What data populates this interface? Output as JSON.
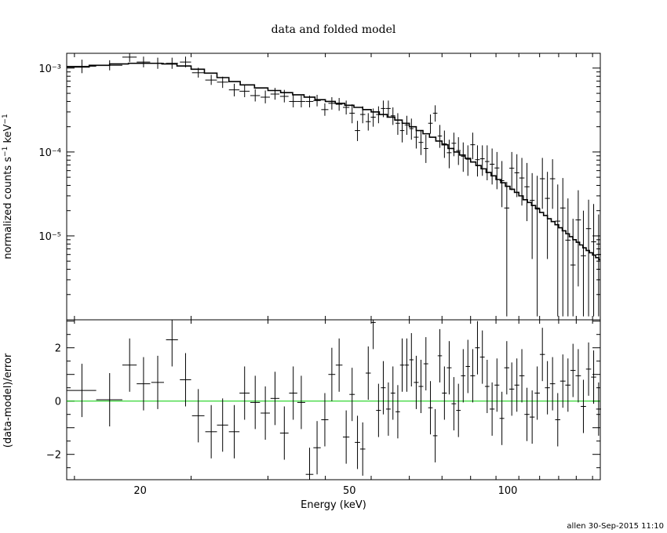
{
  "chart_data": [
    {
      "type": "scatter",
      "title": "data and folded model",
      "xlabel": "",
      "ylabel": "normalized counts s⁻¹ keV⁻¹",
      "x_scale": "log",
      "y_scale": "log",
      "xlim": [
        14.5,
        150
      ],
      "ylim": [
        1e-06,
        0.0015
      ],
      "y_ticks": [
        {
          "value": 0.001,
          "label": "10⁻³"
        },
        {
          "value": 0.0001,
          "label": "10⁻⁴"
        },
        {
          "value": 1e-05,
          "label": "10⁻⁵"
        }
      ],
      "series": [
        {
          "kind": "data",
          "x": [
            15.5,
            17.5,
            19.1,
            20.3,
            21.6,
            23.0,
            24.4,
            25.8,
            27.3,
            28.7,
            30.2,
            31.6,
            33.1,
            34.6,
            36.1,
            37.6,
            39.1,
            40.5,
            42.0,
            43.4,
            44.9,
            46.3,
            47.8,
            49.3,
            50.6,
            51.8,
            53.0,
            54.3,
            55.5,
            56.8,
            58.0,
            59.3,
            60.5,
            61.8,
            63.0,
            64.3,
            65.6,
            67.0,
            68.4,
            69.9,
            71.3,
            72.8,
            74.3,
            75.8,
            77.4,
            79.0,
            80.6,
            82.3,
            84.0,
            85.8,
            87.6,
            89.5,
            91.4,
            93.4,
            95.4,
            97.5,
            99.6,
            101.8,
            104.1,
            106.4,
            108.8,
            111.3,
            113.8,
            116.4,
            119.0,
            121.7,
            124.5,
            127.3,
            130.2,
            133.1,
            136.2,
            139.3,
            142.5,
            145.7,
            148.9
          ],
          "x_err": [
            1.0,
            1.0,
            0.6,
            0.6,
            0.6,
            0.6,
            0.6,
            0.7,
            0.7,
            0.7,
            0.7,
            0.7,
            0.7,
            0.7,
            0.7,
            0.7,
            0.7,
            0.7,
            0.7,
            0.7,
            0.7,
            0.7,
            0.7,
            0.7,
            0.6,
            0.6,
            0.6,
            0.6,
            0.6,
            0.6,
            0.6,
            0.6,
            0.6,
            0.6,
            0.6,
            0.6,
            0.6,
            0.7,
            0.7,
            0.7,
            0.7,
            0.7,
            0.7,
            0.8,
            0.8,
            0.8,
            0.8,
            0.8,
            0.8,
            0.9,
            0.9,
            0.9,
            0.9,
            1.0,
            1.0,
            1.0,
            1.1,
            1.1,
            1.1,
            1.2,
            1.2,
            1.2,
            1.3,
            1.3,
            1.3,
            1.4,
            1.4,
            1.5,
            1.5,
            1.5,
            1.6,
            1.6,
            1.6,
            1.6,
            1.6
          ],
          "y": [
            0.00105,
            0.00108,
            0.00135,
            0.00118,
            0.00114,
            0.00114,
            0.00118,
            0.00088,
            0.00072,
            0.00068,
            0.00055,
            0.00053,
            0.00047,
            0.00045,
            0.00049,
            0.00046,
            0.0004,
            0.0004,
            0.0004,
            0.00041,
            0.00032,
            0.00038,
            0.00037,
            0.00034,
            0.00029,
            0.00018,
            0.00028,
            0.00023,
            0.00026,
            0.00028,
            0.00033,
            0.00033,
            0.00027,
            0.00022,
            0.00018,
            0.00021,
            0.00019,
            0.00015,
            0.00013,
            0.00011,
            0.00022,
            0.00029,
            0.000155,
            0.000125,
            9.8e-05,
            0.000127,
            0.000104,
            8.9e-05,
            8.2e-05,
            0.000122,
            8.1e-05,
            8.3e-05,
            7.7e-05,
            7.15e-05,
            6.45e-05,
            4.55e-05,
            2.15e-05,
            6.4e-05,
            5.65e-05,
            4.9e-05,
            3.85e-05,
            2.65e-05,
            2.15e-05,
            4.8e-05,
            2.8e-05,
            4.8e-05,
            1.5e-05,
            2.15e-05,
            8.9e-06,
            4.5e-06,
            1.55e-05,
            5.8e-06,
            1.22e-05,
            8.5e-06,
            6e-06
          ],
          "y_lo": [
            0.00087,
            0.00094,
            0.00118,
            0.00102,
            0.00098,
            0.00098,
            0.00102,
            0.00077,
            0.00063,
            0.00058,
            0.00046,
            0.00045,
            0.0004,
            0.00038,
            0.00042,
            0.00039,
            0.00034,
            0.00034,
            0.00034,
            0.00035,
            0.00027,
            0.00032,
            0.00031,
            0.00028,
            0.00022,
            0.000135,
            0.00022,
            0.00018,
            0.0002,
            0.00022,
            0.00026,
            0.00026,
            0.00021,
            0.00016,
            0.00013,
            0.00016,
            0.00014,
            0.00011,
            9.2e-05,
            7.4e-05,
            0.000165,
            0.00023,
            0.000112,
            8.5e-05,
            6.4e-05,
            8.9e-05,
            7e-05,
            5.8e-05,
            5.2e-05,
            8.2e-05,
            5.1e-05,
            5.2e-05,
            4.6e-05,
            4.1e-05,
            3.6e-05,
            2.2e-05,
            1.1e-06,
            3.5e-05,
            2.9e-05,
            2.3e-05,
            1.5e-05,
            5.3e-06,
            1.1e-06,
            2.1e-05,
            5.3e-06,
            2.1e-05,
            1.1e-06,
            1.1e-06,
            1.1e-06,
            1.1e-06,
            2.5e-06,
            1.1e-06,
            1.1e-06,
            1.1e-06,
            1.1e-06
          ],
          "y_hi": [
            0.00126,
            0.00124,
            0.00155,
            0.00137,
            0.00133,
            0.00133,
            0.00137,
            0.00101,
            0.00083,
            0.00079,
            0.00065,
            0.00063,
            0.00056,
            0.00054,
            0.00058,
            0.00055,
            0.00048,
            0.00047,
            0.00047,
            0.00048,
            0.00038,
            0.00045,
            0.00044,
            0.00041,
            0.00037,
            0.000235,
            0.00035,
            0.00029,
            0.00033,
            0.00035,
            0.00041,
            0.00041,
            0.00034,
            0.00029,
            0.00024,
            0.00027,
            0.00025,
            0.0002,
            0.00018,
            0.00016,
            0.00028,
            0.00036,
            0.00021,
            0.00018,
            0.00014,
            0.00017,
            0.00015,
            0.00013,
            0.00012,
            0.00017,
            0.00012,
            0.00012,
            0.00012,
            0.00011,
            0.0001,
            7.8e-05,
            4.4e-05,
            0.0001,
            9.4e-05,
            8.5e-05,
            7.4e-05,
            5.6e-05,
            5.2e-05,
            8.5e-05,
            5.8e-05,
            8.2e-05,
            4.1e-05,
            4.9e-05,
            2.8e-05,
            1.6e-05,
            3.5e-05,
            2e-05,
            2.7e-05,
            2.4e-05,
            1.8e-05
          ]
        },
        {
          "kind": "model",
          "x": [
            14.5,
            16.0,
            17.5,
            19.0,
            20.5,
            22.0,
            23.5,
            25.0,
            26.5,
            28.0,
            29.5,
            31.0,
            33.0,
            35.0,
            37.0,
            39.0,
            41.0,
            43.0,
            45.0,
            47.0,
            49.0,
            51.0,
            53.0,
            55.0,
            57.0,
            59.0,
            61.0,
            63.0,
            65.0,
            67.0,
            69.0,
            71.0,
            73.0,
            75.0,
            77.0,
            79.0,
            81.0,
            83.0,
            85.0,
            87.0,
            89.0,
            91.0,
            93.0,
            95.0,
            97.0,
            99.0,
            101.0,
            103.0,
            105.0,
            107.0,
            109.0,
            111.0,
            113.0,
            115.0,
            117.0,
            119.0,
            121.0,
            123.0,
            125.0,
            127.0,
            129.0,
            131.0,
            133.0,
            135.0,
            137.0,
            139.0,
            141.0,
            143.0,
            145.0,
            147.0,
            149.0,
            150.0
          ],
          "y": [
            0.00103,
            0.00108,
            0.00112,
            0.00114,
            0.00114,
            0.00112,
            0.00106,
            0.00097,
            0.00087,
            0.00077,
            0.00069,
            0.00063,
            0.00058,
            0.00054,
            0.00051,
            0.00048,
            0.00045,
            0.00042,
            0.0004,
            0.00038,
            0.00036,
            0.00034,
            0.00032,
            0.0003,
            0.00028,
            0.00026,
            0.00024,
            0.00022,
            0.0002,
            0.00018,
            0.000165,
            0.00015,
            0.000135,
            0.000122,
            0.00011,
            0.0001,
            9.2e-05,
            8.4e-05,
            7.6e-05,
            6.9e-05,
            6.3e-05,
            5.7e-05,
            5.2e-05,
            4.7e-05,
            4.3e-05,
            3.9e-05,
            3.6e-05,
            3.3e-05,
            3e-05,
            2.7e-05,
            2.5e-05,
            2.3e-05,
            2.1e-05,
            1.9e-05,
            1.75e-05,
            1.6e-05,
            1.48e-05,
            1.36e-05,
            1.25e-05,
            1.15e-05,
            1.06e-05,
            9.8e-06,
            9e-06,
            8.4e-06,
            7.8e-06,
            7.2e-06,
            6.7e-06,
            6.3e-06,
            5.9e-06,
            5.5e-06,
            5.2e-06,
            5.2e-06
          ]
        }
      ]
    },
    {
      "type": "scatter",
      "xlabel": "Energy (keV)",
      "ylabel": "(data-model)/error",
      "x_scale": "log",
      "xlim": [
        14.5,
        150
      ],
      "ylim": [
        -2.95,
        3.05
      ],
      "x_ticks": [
        {
          "value": 20,
          "label": "20"
        },
        {
          "value": 50,
          "label": "50"
        },
        {
          "value": 100,
          "label": "100"
        }
      ],
      "y_ticks": [
        {
          "value": 2,
          "label": "2"
        },
        {
          "value": 0,
          "label": "0"
        },
        {
          "value": -2,
          "label": "−2"
        }
      ],
      "reference_line": {
        "y": 0,
        "color": "#00cc00"
      },
      "series": [
        {
          "kind": "residuals",
          "x": [
            15.5,
            17.5,
            19.1,
            20.3,
            21.6,
            23.0,
            24.4,
            25.8,
            27.3,
            28.7,
            30.2,
            31.6,
            33.1,
            34.6,
            36.1,
            37.6,
            39.1,
            40.5,
            42.0,
            43.4,
            44.9,
            46.3,
            47.8,
            49.3,
            50.6,
            51.8,
            53.0,
            54.3,
            55.5,
            56.8,
            58.0,
            59.3,
            60.5,
            61.8,
            63.0,
            64.3,
            65.6,
            67.0,
            68.4,
            69.9,
            71.3,
            72.8,
            74.3,
            75.8,
            77.4,
            79.0,
            80.6,
            82.3,
            84.0,
            85.8,
            87.6,
            89.5,
            91.4,
            93.4,
            95.4,
            97.5,
            99.6,
            101.8,
            104.1,
            106.4,
            108.8,
            111.3,
            113.8,
            116.4,
            119.0,
            121.7,
            124.5,
            127.3,
            130.2,
            133.1,
            136.2,
            139.3,
            142.5,
            145.7,
            148.9
          ],
          "x_err": [
            1.0,
            1.0,
            0.6,
            0.6,
            0.6,
            0.6,
            0.6,
            0.7,
            0.7,
            0.7,
            0.7,
            0.7,
            0.7,
            0.7,
            0.7,
            0.7,
            0.7,
            0.7,
            0.7,
            0.7,
            0.7,
            0.7,
            0.7,
            0.7,
            0.6,
            0.6,
            0.6,
            0.6,
            0.6,
            0.6,
            0.6,
            0.6,
            0.6,
            0.6,
            0.6,
            0.6,
            0.6,
            0.7,
            0.7,
            0.7,
            0.7,
            0.7,
            0.7,
            0.8,
            0.8,
            0.8,
            0.8,
            0.8,
            0.8,
            0.9,
            0.9,
            0.9,
            0.9,
            1.0,
            1.0,
            1.0,
            1.1,
            1.1,
            1.1,
            1.2,
            1.2,
            1.2,
            1.3,
            1.3,
            1.3,
            1.4,
            1.4,
            1.5,
            1.5,
            1.5,
            1.6,
            1.6,
            1.6,
            1.6,
            1.6
          ],
          "y": [
            0.4,
            0.05,
            1.35,
            0.65,
            0.7,
            2.3,
            0.8,
            -0.55,
            -1.15,
            -0.9,
            -1.15,
            0.3,
            -0.05,
            -0.45,
            0.1,
            -1.2,
            0.3,
            -0.05,
            -2.75,
            -1.75,
            -0.7,
            1.0,
            1.35,
            -1.35,
            0.25,
            -1.55,
            -1.8,
            1.05,
            2.95,
            -0.35,
            0.5,
            -0.3,
            0.3,
            -0.4,
            1.35,
            1.35,
            1.55,
            0.7,
            0.55,
            1.4,
            -0.25,
            -1.3,
            1.7,
            0.3,
            1.25,
            -0.1,
            -0.35,
            0.95,
            1.3,
            0.95,
            2.0,
            1.65,
            0.55,
            -0.3,
            0.6,
            -0.65,
            1.25,
            0.45,
            0.6,
            0.95,
            -0.5,
            -0.6,
            0.3,
            1.75,
            0.5,
            0.65,
            -0.7,
            0.75,
            0.6,
            1.15,
            0.95,
            -0.2,
            1.2,
            0.9,
            -0.3
          ],
          "y_err": [
            1.0,
            1.0,
            1.0,
            1.0,
            1.0,
            1.0,
            1.0,
            1.0,
            1.0,
            1.0,
            1.0,
            1.0,
            1.0,
            1.0,
            1.0,
            1.0,
            1.0,
            1.0,
            1.0,
            1.0,
            1.0,
            1.0,
            1.0,
            1.0,
            1.0,
            1.0,
            1.0,
            1.0,
            1.0,
            1.0,
            1.0,
            1.0,
            1.0,
            1.0,
            1.0,
            1.0,
            1.0,
            1.0,
            1.0,
            1.0,
            1.0,
            1.0,
            1.0,
            1.0,
            1.0,
            1.0,
            1.0,
            1.0,
            1.0,
            1.0,
            1.0,
            1.0,
            1.0,
            1.0,
            1.0,
            1.0,
            1.0,
            1.0,
            1.0,
            1.0,
            1.0,
            1.0,
            1.0,
            1.0,
            1.0,
            1.0,
            1.0,
            1.0,
            1.0,
            1.0,
            1.0,
            1.0,
            1.0,
            1.0,
            1.0
          ]
        }
      ]
    }
  ],
  "footer": "allen 30-Sep-2015 11:10",
  "colors": {
    "axes": "#000000",
    "data": "#000000",
    "model": "#000000",
    "zero_line": "#00cc00",
    "background": "#ffffff"
  }
}
